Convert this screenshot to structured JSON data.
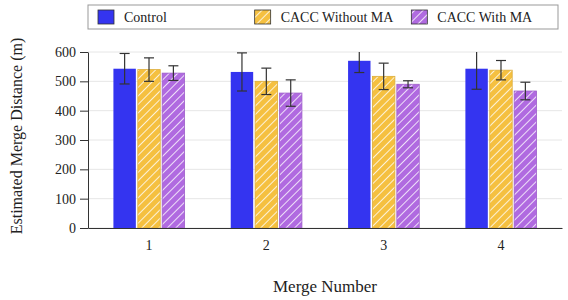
{
  "chart_data": {
    "type": "bar",
    "x_label": "Merge Number",
    "y_label": "Estimated Merge Distance (m)",
    "categories": [
      "1",
      "2",
      "3",
      "4"
    ],
    "series": [
      {
        "name": "Control",
        "color": "#3434f0",
        "values": [
          543,
          532,
          570,
          543
        ],
        "errors": [
          52,
          65,
          40,
          70
        ]
      },
      {
        "name": "CACC Without MA",
        "color": "#f5c040",
        "values": [
          540,
          500,
          517,
          538
        ],
        "errors": [
          40,
          45,
          45,
          33
        ]
      },
      {
        "name": "CACC With MA",
        "color": "#b06ae0",
        "values": [
          528,
          460,
          490,
          467
        ],
        "errors": [
          25,
          45,
          12,
          30
        ]
      }
    ],
    "ylim": [
      0,
      600
    ],
    "yticks": [
      0,
      100,
      200,
      300,
      400,
      500,
      600
    ],
    "grid": true,
    "legend": "top"
  }
}
